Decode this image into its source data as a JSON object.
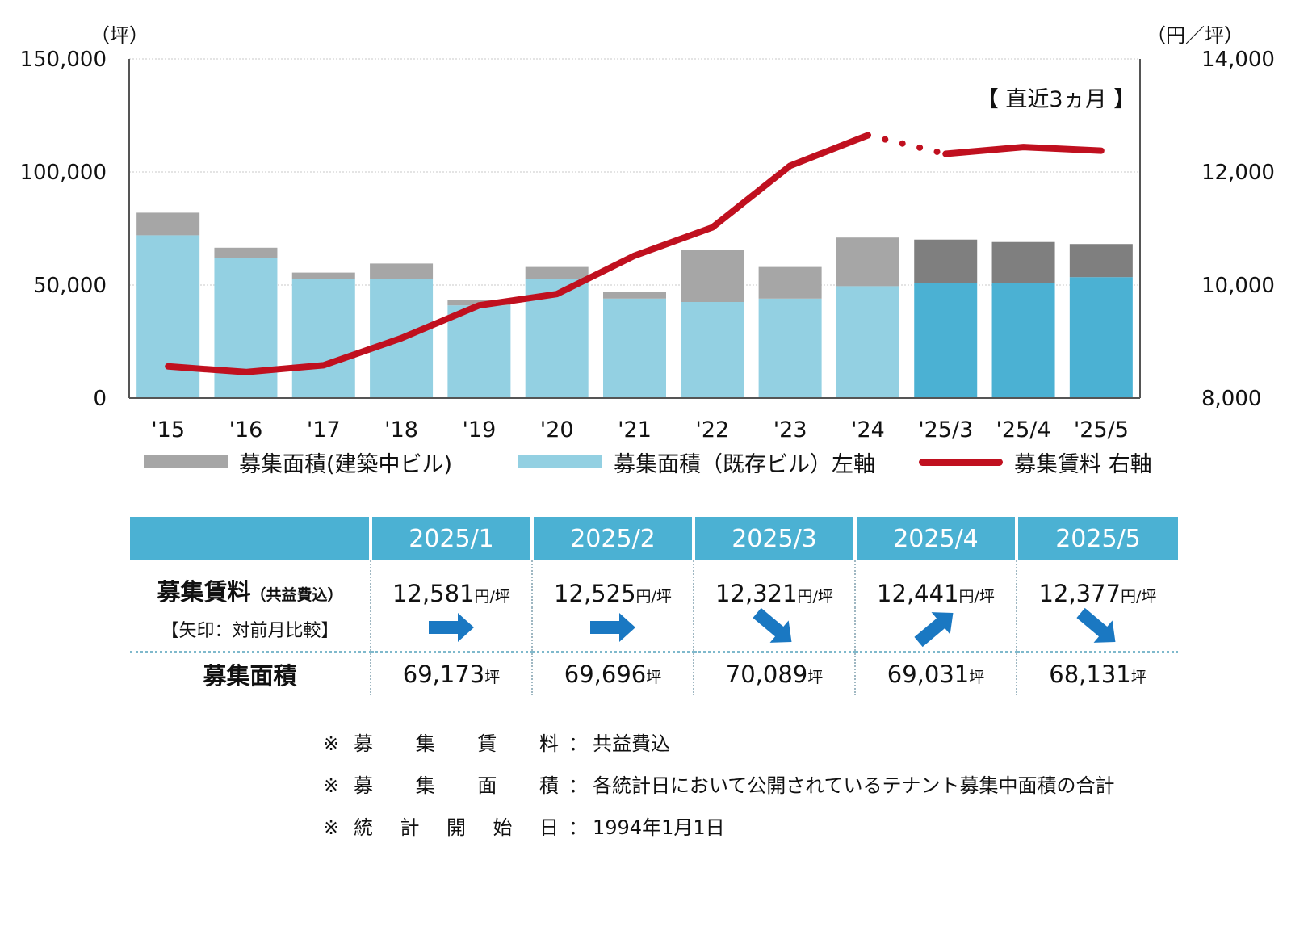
{
  "chart_data": {
    "type": "bar+line",
    "categories": [
      "'15",
      "'16",
      "'17",
      "'18",
      "'19",
      "'20",
      "'21",
      "'22",
      "'23",
      "'24",
      "'25/3",
      "'25/4",
      "'25/5"
    ],
    "series": [
      {
        "name": "募集面積(既存ビル)",
        "axis": "left",
        "kind": "stacked-bar",
        "values": [
          72000,
          62000,
          52500,
          52500,
          41000,
          52500,
          44000,
          42500,
          44000,
          49500,
          51000,
          51000,
          53500
        ]
      },
      {
        "name": "募集面積(建築中ビル)",
        "axis": "left",
        "kind": "stacked-bar",
        "values": [
          10000,
          4500,
          3000,
          7000,
          2500,
          5500,
          3000,
          23000,
          14000,
          21500,
          19089,
          18031,
          14631
        ]
      },
      {
        "name": "募集賃料",
        "axis": "right",
        "kind": "line",
        "values": [
          8560,
          8460,
          8580,
          9060,
          9640,
          9840,
          10520,
          11020,
          12110,
          12650,
          12321,
          12441,
          12377
        ]
      }
    ],
    "recent_split_index": 10,
    "y_left": {
      "unit": "（坪）",
      "min": 0,
      "max": 150000,
      "ticks": [
        "0",
        "50,000",
        "100,000",
        "150,000"
      ]
    },
    "y_right": {
      "unit": "（円／坪）",
      "min": 8000,
      "max": 14000,
      "ticks": [
        "8,000",
        "10,000",
        "12,000",
        "14,000"
      ]
    },
    "annotation": "【 直近3ヵ月 】",
    "colors": {
      "existing": "#93d0e2",
      "construction": "#a6a6a6",
      "recent_existing": "#4bb1d3",
      "recent_construction": "#7f7f7f",
      "rent_line": "#c0101f",
      "gridline": "#c8c8c8",
      "axis": "#555555"
    }
  },
  "legend": [
    {
      "label": "募集面積(建築中ビル)",
      "color": "#a6a6a6"
    },
    {
      "label": "募集面積（既存ビル）左軸",
      "color": "#93d0e2"
    },
    {
      "label": "募集賃料 右軸",
      "color": "#c0101f"
    }
  ],
  "table": {
    "months": [
      "2025/1",
      "2025/2",
      "2025/3",
      "2025/4",
      "2025/5"
    ],
    "rent_label": "募集賃料",
    "rent_sub": "（共益費込）",
    "arrow_label": "【矢印：対前月比較】",
    "rents": [
      "12,581",
      "12,525",
      "12,321",
      "12,441",
      "12,377"
    ],
    "rent_unit": "円/坪",
    "arrows": [
      "right",
      "right",
      "down-right",
      "up-right",
      "down-right"
    ],
    "arrow_color": "#1a78c2",
    "area_label": "募集面積",
    "areas": [
      "69,173",
      "69,696",
      "70,089",
      "69,031",
      "68,131"
    ],
    "area_unit": "坪",
    "header_color": "#4bb1d3"
  },
  "notes": [
    {
      "mark": "※",
      "key": [
        "募",
        "集",
        "賃",
        "料"
      ],
      "colon": "：",
      "value": "共益費込"
    },
    {
      "mark": "※",
      "key": [
        "募",
        "集",
        "面",
        "積"
      ],
      "colon": "：",
      "value": "各統計日において公開されているテナント募集中面積の合計"
    },
    {
      "mark": "※",
      "key": [
        "統",
        "計",
        "開",
        "始",
        "日"
      ],
      "colon": "：",
      "value": "1994年1月1日"
    }
  ]
}
